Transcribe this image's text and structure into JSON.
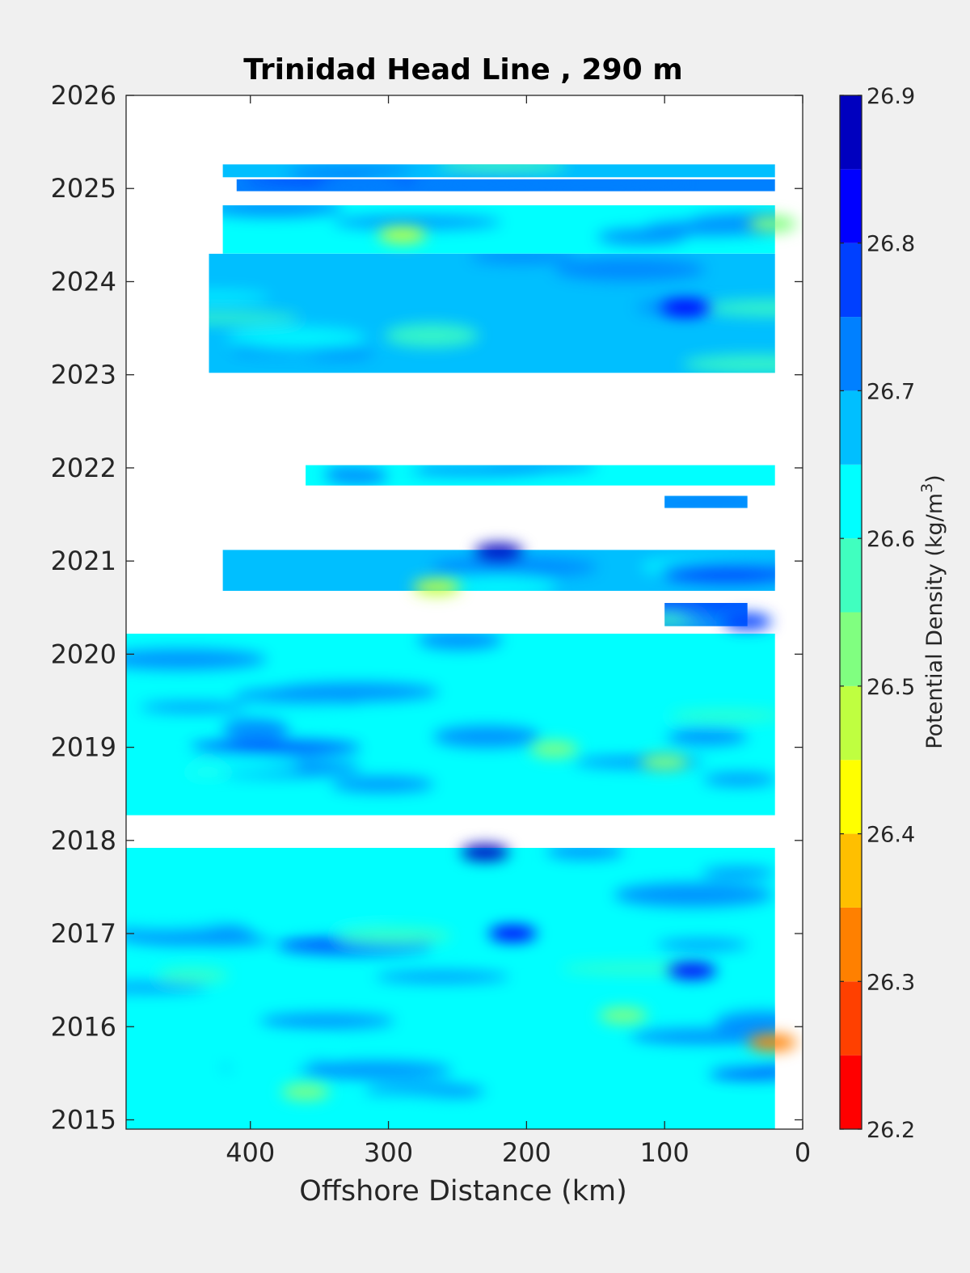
{
  "chart_data": {
    "type": "heatmap",
    "title": "Trinidad Head Line , 290 m",
    "xlabel": "Offshore Distance (km)",
    "ylabel": "",
    "x_reversed": true,
    "xlim": [
      490,
      0
    ],
    "ylim": [
      2014.9,
      2026
    ],
    "x_ticks": [
      400,
      300,
      200,
      100,
      0
    ],
    "y_ticks": [
      2015,
      2016,
      2017,
      2018,
      2019,
      2020,
      2021,
      2022,
      2023,
      2024,
      2025,
      2026
    ],
    "grid": false,
    "colorbar": {
      "label": "Potential Density (kg/m",
      "label_superscript": "3",
      "label_suffix": ")",
      "ticks": [
        26.2,
        26.3,
        26.4,
        26.5,
        26.6,
        26.7,
        26.8,
        26.9
      ],
      "levels": [
        26.2,
        26.25,
        26.3,
        26.35,
        26.4,
        26.45,
        26.5,
        26.55,
        26.6,
        26.65,
        26.7,
        26.75,
        26.8,
        26.85,
        26.9
      ],
      "colors": [
        "#ff0000",
        "#ff4000",
        "#ff8000",
        "#ffbf00",
        "#ffff00",
        "#bfff40",
        "#80ff80",
        "#40ffbf",
        "#00ffff",
        "#00bfff",
        "#0080ff",
        "#0040ff",
        "#0000ff",
        "#0000bf"
      ]
    },
    "data_bands": [
      {
        "t0": 2025.12,
        "t1": 2025.26,
        "x_max": 420,
        "x_min": 20,
        "mean": 26.68
      },
      {
        "t0": 2024.97,
        "t1": 2025.1,
        "x_max": 410,
        "x_min": 20,
        "mean": 26.7
      },
      {
        "t0": 2024.3,
        "t1": 2024.82,
        "x_max": 420,
        "x_min": 20,
        "mean": 26.62
      },
      {
        "t0": 2023.02,
        "t1": 2024.3,
        "x_max": 430,
        "x_min": 20,
        "mean": 26.68
      },
      {
        "t0": 2021.81,
        "t1": 2022.03,
        "x_max": 360,
        "x_min": 20,
        "mean": 26.63
      },
      {
        "t0": 2021.57,
        "t1": 2021.7,
        "x_max": 100,
        "x_min": 40,
        "mean": 26.66
      },
      {
        "t0": 2020.68,
        "t1": 2021.12,
        "x_max": 420,
        "x_min": 20,
        "mean": 26.68
      },
      {
        "t0": 2020.3,
        "t1": 2020.55,
        "x_max": 100,
        "x_min": 40,
        "mean": 26.7
      },
      {
        "t0": 2018.27,
        "t1": 2020.22,
        "x_max": 490,
        "x_min": 20,
        "mean": 26.64
      },
      {
        "t0": 2014.9,
        "t1": 2017.92,
        "x_max": 490,
        "x_min": 20,
        "mean": 26.63
      }
    ],
    "features": [
      {
        "x": 22,
        "t": 2015.83,
        "value": 26.3
      },
      {
        "x": 22,
        "t": 2024.62,
        "value": 26.5
      },
      {
        "x": 290,
        "t": 2024.5,
        "value": 26.45
      },
      {
        "x": 265,
        "t": 2020.72,
        "value": 26.45
      },
      {
        "x": 180,
        "t": 2018.98,
        "value": 26.5
      },
      {
        "x": 100,
        "t": 2018.84,
        "value": 26.5
      },
      {
        "x": 360,
        "t": 2015.3,
        "value": 26.5
      },
      {
        "x": 130,
        "t": 2016.12,
        "value": 26.5
      },
      {
        "x": 230,
        "t": 2017.87,
        "value": 26.9
      },
      {
        "x": 220,
        "t": 2021.1,
        "value": 26.9
      },
      {
        "x": 85,
        "t": 2023.72,
        "value": 26.8
      },
      {
        "x": 210,
        "t": 2017.0,
        "value": 26.8
      },
      {
        "x": 80,
        "t": 2016.6,
        "value": 26.8
      },
      {
        "x": 40,
        "t": 2020.35,
        "value": 26.75
      }
    ]
  }
}
